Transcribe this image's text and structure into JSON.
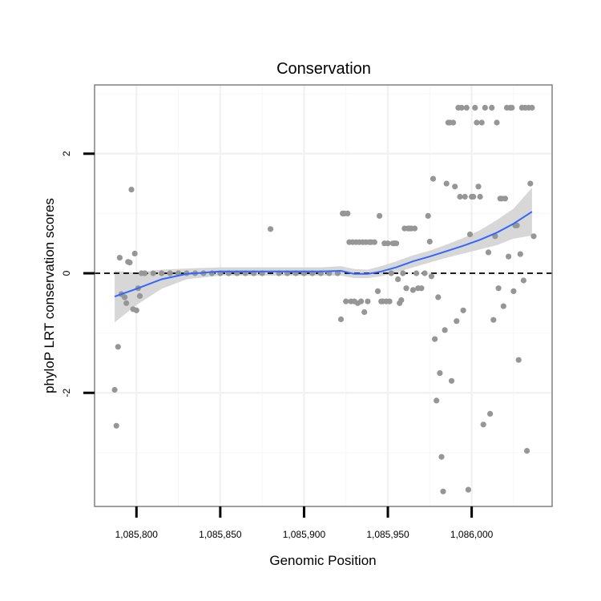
{
  "chart_data": {
    "type": "scatter",
    "title": "Conservation",
    "xlabel": "Genomic Position",
    "ylabel": "phyloP LRT conservation scores",
    "xlim": [
      1085775,
      1086048
    ],
    "ylim": [
      -3.9,
      3.15
    ],
    "x_ticks": [
      1085800,
      1085850,
      1085900,
      1085950,
      1086000
    ],
    "x_tick_labels": [
      "1,085,800",
      "1,085,850",
      "1,085,900",
      "1,085,950",
      "1,086,000"
    ],
    "y_ticks": [
      -2,
      0,
      2
    ],
    "y_tick_labels": [
      "-2",
      "0",
      "2"
    ],
    "reference_line": {
      "y": 0,
      "style": "dashed"
    },
    "colors": {
      "points": "#969696",
      "smooth": "#3366FF",
      "band": "#D3D3D3",
      "panel_border": "#808080",
      "grid": "#F2F2F2"
    },
    "points": [
      {
        "x": 1085787,
        "y": -1.95
      },
      {
        "x": 1085788,
        "y": -2.55
      },
      {
        "x": 1085789,
        "y": -1.23
      },
      {
        "x": 1085790,
        "y": 0.26
      },
      {
        "x": 1085791,
        "y": -0.35
      },
      {
        "x": 1085793,
        "y": -0.4
      },
      {
        "x": 1085794,
        "y": -0.5
      },
      {
        "x": 1085795,
        "y": 0.19
      },
      {
        "x": 1085796,
        "y": 0.18
      },
      {
        "x": 1085797,
        "y": 1.4
      },
      {
        "x": 1085798,
        "y": -0.6
      },
      {
        "x": 1085799,
        "y": 0.33
      },
      {
        "x": 1085800,
        "y": -0.62
      },
      {
        "x": 1085801,
        "y": -0.25
      },
      {
        "x": 1085802,
        "y": -0.38
      },
      {
        "x": 1085803,
        "y": 0.0
      },
      {
        "x": 1085805,
        "y": 0.0
      },
      {
        "x": 1085810,
        "y": 0.0
      },
      {
        "x": 1085815,
        "y": 0.0
      },
      {
        "x": 1085820,
        "y": 0.0
      },
      {
        "x": 1085825,
        "y": 0.0
      },
      {
        "x": 1085830,
        "y": 0.0
      },
      {
        "x": 1085835,
        "y": 0.0
      },
      {
        "x": 1085840,
        "y": 0.0
      },
      {
        "x": 1085845,
        "y": 0.0
      },
      {
        "x": 1085850,
        "y": 0.0
      },
      {
        "x": 1085855,
        "y": 0.0
      },
      {
        "x": 1085860,
        "y": 0.0
      },
      {
        "x": 1085865,
        "y": 0.0
      },
      {
        "x": 1085870,
        "y": 0.0
      },
      {
        "x": 1085875,
        "y": 0.0
      },
      {
        "x": 1085880,
        "y": 0.74
      },
      {
        "x": 1085885,
        "y": 0.0
      },
      {
        "x": 1085890,
        "y": 0.0
      },
      {
        "x": 1085895,
        "y": 0.0
      },
      {
        "x": 1085900,
        "y": 0.0
      },
      {
        "x": 1085905,
        "y": 0.0
      },
      {
        "x": 1085910,
        "y": 0.0
      },
      {
        "x": 1085915,
        "y": 0.0
      },
      {
        "x": 1085920,
        "y": 0.0
      },
      {
        "x": 1085922,
        "y": -0.77
      },
      {
        "x": 1085923,
        "y": 1.0
      },
      {
        "x": 1085924,
        "y": 1.0
      },
      {
        "x": 1085925,
        "y": -0.47
      },
      {
        "x": 1085926,
        "y": 1.0
      },
      {
        "x": 1085927,
        "y": 0.52
      },
      {
        "x": 1085928,
        "y": -0.47
      },
      {
        "x": 1085929,
        "y": 0.52
      },
      {
        "x": 1085930,
        "y": -0.47
      },
      {
        "x": 1085931,
        "y": 0.52
      },
      {
        "x": 1085932,
        "y": -0.5
      },
      {
        "x": 1085933,
        "y": 0.52
      },
      {
        "x": 1085934,
        "y": -0.47
      },
      {
        "x": 1085935,
        "y": 0.52
      },
      {
        "x": 1085936,
        "y": -0.65
      },
      {
        "x": 1085937,
        "y": 0.52
      },
      {
        "x": 1085938,
        "y": -0.47
      },
      {
        "x": 1085939,
        "y": 0.52
      },
      {
        "x": 1085940,
        "y": 0.52
      },
      {
        "x": 1085942,
        "y": 0.52
      },
      {
        "x": 1085944,
        "y": -0.3
      },
      {
        "x": 1085945,
        "y": 0.96
      },
      {
        "x": 1085946,
        "y": -0.47
      },
      {
        "x": 1085947,
        "y": -0.47
      },
      {
        "x": 1085948,
        "y": 0.5
      },
      {
        "x": 1085949,
        "y": -0.47
      },
      {
        "x": 1085950,
        "y": 0.5
      },
      {
        "x": 1085951,
        "y": -0.47
      },
      {
        "x": 1085952,
        "y": 0.0
      },
      {
        "x": 1085953,
        "y": 0.5
      },
      {
        "x": 1085954,
        "y": 0.5
      },
      {
        "x": 1085955,
        "y": 0.5
      },
      {
        "x": 1085956,
        "y": -0.1
      },
      {
        "x": 1085957,
        "y": -0.5
      },
      {
        "x": 1085958,
        "y": -0.45
      },
      {
        "x": 1085959,
        "y": 0.0
      },
      {
        "x": 1085960,
        "y": 0.75
      },
      {
        "x": 1085961,
        "y": -0.25
      },
      {
        "x": 1085962,
        "y": 0.75
      },
      {
        "x": 1085963,
        "y": 0.75
      },
      {
        "x": 1085964,
        "y": 0.75
      },
      {
        "x": 1085965,
        "y": -0.28
      },
      {
        "x": 1085966,
        "y": 0.75
      },
      {
        "x": 1085967,
        "y": 0.0
      },
      {
        "x": 1085968,
        "y": -0.25
      },
      {
        "x": 1085970,
        "y": -0.25
      },
      {
        "x": 1085972,
        "y": 0.0
      },
      {
        "x": 1085974,
        "y": 0.96
      },
      {
        "x": 1085975,
        "y": 0.53
      },
      {
        "x": 1085976,
        "y": -0.05
      },
      {
        "x": 1085977,
        "y": 1.58
      },
      {
        "x": 1085978,
        "y": -1.1
      },
      {
        "x": 1085979,
        "y": -2.13
      },
      {
        "x": 1085980,
        "y": -0.4
      },
      {
        "x": 1085981,
        "y": -1.67
      },
      {
        "x": 1085982,
        "y": -3.07
      },
      {
        "x": 1085983,
        "y": -3.65
      },
      {
        "x": 1085984,
        "y": -0.95
      },
      {
        "x": 1085985,
        "y": 1.5
      },
      {
        "x": 1085986,
        "y": 2.52
      },
      {
        "x": 1085987,
        "y": 2.52
      },
      {
        "x": 1085988,
        "y": -1.8
      },
      {
        "x": 1085989,
        "y": 2.52
      },
      {
        "x": 1085990,
        "y": 1.45
      },
      {
        "x": 1085991,
        "y": -0.8
      },
      {
        "x": 1085992,
        "y": 2.77
      },
      {
        "x": 1085993,
        "y": 1.28
      },
      {
        "x": 1085994,
        "y": 2.77
      },
      {
        "x": 1085995,
        "y": -0.62
      },
      {
        "x": 1085996,
        "y": 1.28
      },
      {
        "x": 1085997,
        "y": 2.77
      },
      {
        "x": 1085998,
        "y": -3.62
      },
      {
        "x": 1085999,
        "y": 0.65
      },
      {
        "x": 1086000,
        "y": 1.28
      },
      {
        "x": 1086001,
        "y": 1.28
      },
      {
        "x": 1086002,
        "y": 2.77
      },
      {
        "x": 1086003,
        "y": 2.52
      },
      {
        "x": 1086004,
        "y": 1.45
      },
      {
        "x": 1086005,
        "y": 1.28
      },
      {
        "x": 1086006,
        "y": 2.52
      },
      {
        "x": 1086007,
        "y": -2.53
      },
      {
        "x": 1086008,
        "y": 2.77
      },
      {
        "x": 1086010,
        "y": 0.35
      },
      {
        "x": 1086011,
        "y": -2.35
      },
      {
        "x": 1086012,
        "y": 2.77
      },
      {
        "x": 1086013,
        "y": -0.78
      },
      {
        "x": 1086014,
        "y": 0.62
      },
      {
        "x": 1086015,
        "y": 2.52
      },
      {
        "x": 1086016,
        "y": -0.25
      },
      {
        "x": 1086017,
        "y": 1.25
      },
      {
        "x": 1086018,
        "y": 1.25
      },
      {
        "x": 1086019,
        "y": -0.55
      },
      {
        "x": 1086020,
        "y": 1.25
      },
      {
        "x": 1086021,
        "y": 2.77
      },
      {
        "x": 1086022,
        "y": 0.28
      },
      {
        "x": 1086023,
        "y": 2.77
      },
      {
        "x": 1086024,
        "y": 2.77
      },
      {
        "x": 1086025,
        "y": -0.3
      },
      {
        "x": 1086026,
        "y": 0.8
      },
      {
        "x": 1086027,
        "y": 0.8
      },
      {
        "x": 1086028,
        "y": -1.45
      },
      {
        "x": 1086029,
        "y": 0.32
      },
      {
        "x": 1086030,
        "y": 2.77
      },
      {
        "x": 1086031,
        "y": -0.12
      },
      {
        "x": 1086032,
        "y": 2.77
      },
      {
        "x": 1086033,
        "y": -2.97
      },
      {
        "x": 1086034,
        "y": 2.77
      },
      {
        "x": 1086035,
        "y": 1.5
      },
      {
        "x": 1086036,
        "y": 2.77
      },
      {
        "x": 1086037,
        "y": 0.62
      }
    ],
    "smooth": {
      "x": [
        1085787,
        1085800,
        1085815,
        1085830,
        1085850,
        1085870,
        1085890,
        1085910,
        1085922,
        1085930,
        1085938,
        1085946,
        1085955,
        1085965,
        1085975,
        1085985,
        1085995,
        1086005,
        1086015,
        1086025,
        1086036
      ],
      "y": [
        -0.39,
        -0.26,
        -0.1,
        -0.01,
        0.03,
        0.03,
        0.03,
        0.03,
        0.04,
        -0.01,
        -0.01,
        0.03,
        0.1,
        0.2,
        0.28,
        0.37,
        0.46,
        0.56,
        0.68,
        0.83,
        1.03
      ],
      "lower": [
        -0.82,
        -0.53,
        -0.26,
        -0.1,
        -0.04,
        -0.04,
        -0.04,
        -0.04,
        -0.04,
        -0.08,
        -0.08,
        -0.05,
        0.01,
        0.1,
        0.18,
        0.26,
        0.33,
        0.4,
        0.47,
        0.58,
        0.63
      ],
      "upper": [
        0.04,
        0.01,
        0.06,
        0.08,
        0.1,
        0.1,
        0.1,
        0.1,
        0.12,
        0.07,
        0.06,
        0.12,
        0.2,
        0.3,
        0.38,
        0.48,
        0.59,
        0.72,
        0.89,
        1.08,
        1.43
      ]
    }
  }
}
